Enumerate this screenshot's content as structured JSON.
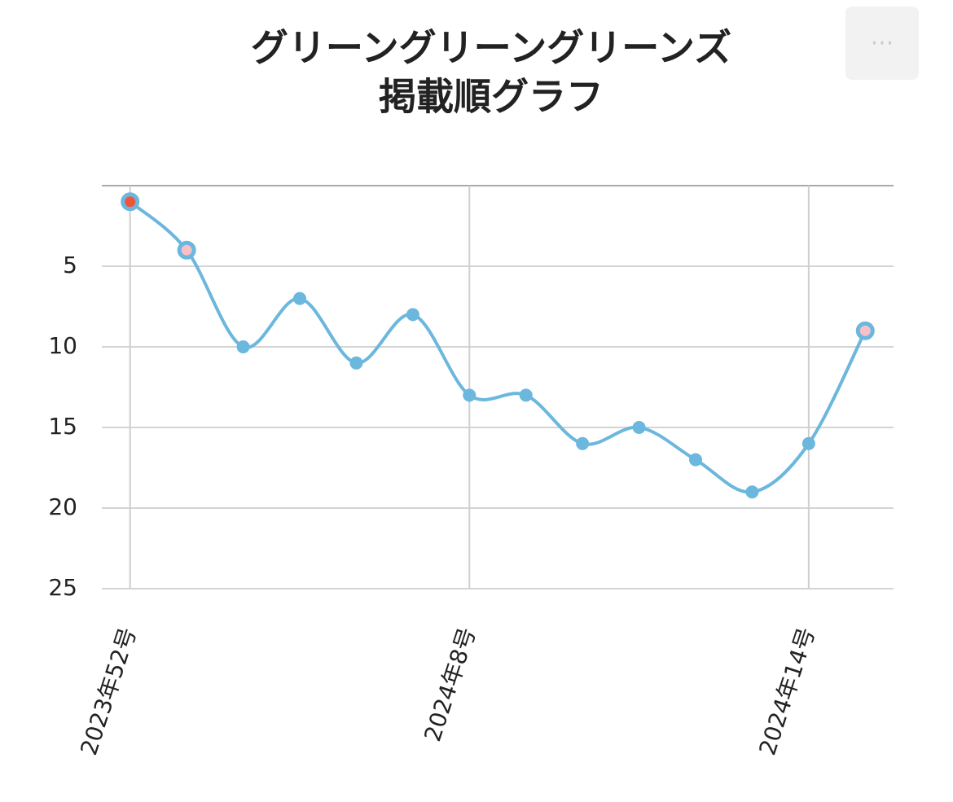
{
  "chart_data": {
    "type": "line",
    "title": [
      "グリーングリーングリーンズ",
      "掲載順グラフ"
    ],
    "categories": [
      "2023年52号",
      null,
      null,
      null,
      null,
      null,
      "2024年8号",
      null,
      null,
      null,
      null,
      null,
      "2024年14号",
      null
    ],
    "series": [
      {
        "color": "#6bb7dd",
        "values": [
          1,
          4,
          10,
          7,
          11,
          8,
          13,
          13,
          16,
          15,
          17,
          19,
          16,
          9
        ],
        "marker_colors": [
          "#f0553a",
          "#f9c0c8",
          "#6bb7dd",
          "#6bb7dd",
          "#6bb7dd",
          "#6bb7dd",
          "#6bb7dd",
          "#6bb7dd",
          "#6bb7dd",
          "#6bb7dd",
          "#6bb7dd",
          "#6bb7dd",
          "#6bb7dd",
          "#f9c0c8"
        ]
      }
    ],
    "ylim": [
      0,
      25
    ],
    "yticks": [
      5,
      10,
      15,
      20,
      25
    ],
    "y_reversed": true,
    "grid": true
  },
  "menu_button": "···"
}
